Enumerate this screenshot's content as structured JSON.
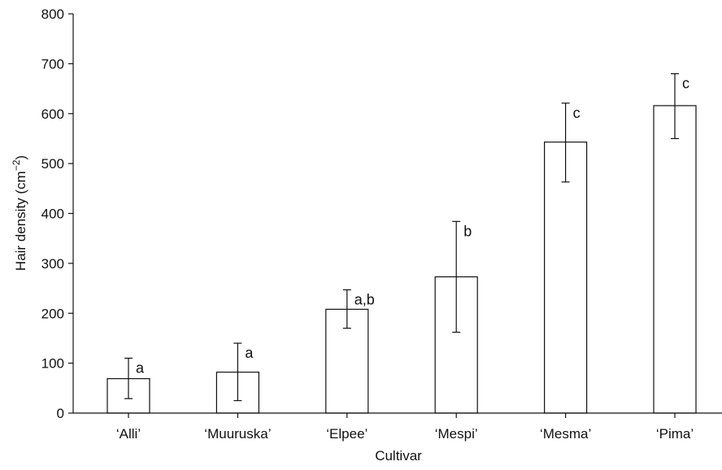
{
  "chart_data": {
    "type": "bar",
    "categories": [
      "‘Alli’",
      "‘Muuruska’",
      "‘Elpee’",
      "‘Mespi’",
      "‘Mesma’",
      "‘Pima’"
    ],
    "values": [
      69,
      82,
      208,
      273,
      543,
      616
    ],
    "error_low": [
      29,
      25,
      170,
      162,
      463,
      550
    ],
    "error_high": [
      110,
      140,
      247,
      384,
      621,
      680
    ],
    "significance_labels": [
      "a",
      "a",
      "a,b",
      "b",
      "c",
      "c"
    ],
    "xlabel": "Cultivar",
    "ylabel_main": "Hair density (cm",
    "ylabel_sup": "−2",
    "ylabel_close": ")",
    "ylim": [
      0,
      800
    ],
    "yticks": [
      0,
      100,
      200,
      300,
      400,
      500,
      600,
      700,
      800
    ],
    "grid": false,
    "colors": {
      "bar_fill": "#ffffff",
      "stroke": "#111111"
    }
  }
}
